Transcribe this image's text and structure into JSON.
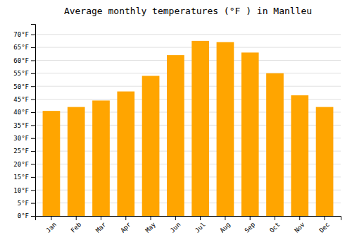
{
  "chart_data": {
    "type": "bar",
    "title": "Average monthly temperatures (°F ) in Manlleu",
    "categories": [
      "Jan",
      "Feb",
      "Mar",
      "Apr",
      "May",
      "Jun",
      "Jul",
      "Aug",
      "Sep",
      "Oct",
      "Nov",
      "Dec"
    ],
    "values": [
      40.5,
      42.0,
      44.5,
      48.0,
      54.0,
      62.0,
      67.5,
      67.0,
      63.0,
      55.0,
      46.5,
      42.0
    ],
    "color": "#ffa500",
    "ylim": [
      0,
      74
    ],
    "yticks": [
      {
        "value": 0,
        "label": "0°F"
      },
      {
        "value": 5,
        "label": "5°F"
      },
      {
        "value": 10,
        "label": "10°F"
      },
      {
        "value": 15,
        "label": "15°F"
      },
      {
        "value": 20,
        "label": "20°F"
      },
      {
        "value": 25,
        "label": "25°F"
      },
      {
        "value": 30,
        "label": "30°F"
      },
      {
        "value": 35,
        "label": "35°F"
      },
      {
        "value": 40,
        "label": "40°F"
      },
      {
        "value": 45,
        "label": "45°F"
      },
      {
        "value": 50,
        "label": "50°F"
      },
      {
        "value": 55,
        "label": "55°F"
      },
      {
        "value": 60,
        "label": "60°F"
      },
      {
        "value": 65,
        "label": "65°F"
      },
      {
        "value": 70,
        "label": "70°F"
      }
    ],
    "grid": true
  }
}
